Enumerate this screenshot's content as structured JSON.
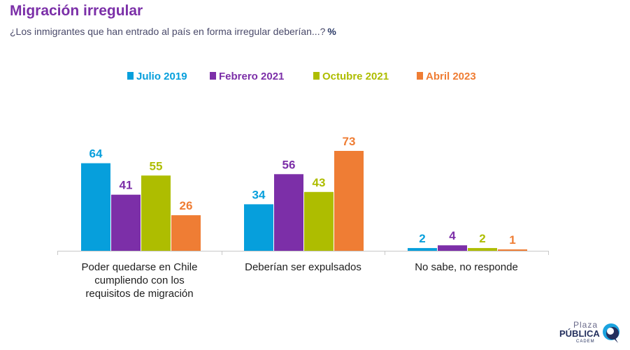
{
  "header": {
    "title": "Migración irregular",
    "subtitle": "¿Los inmigrantes que han entrado al país en forma irregular deberían...?",
    "unit": "%"
  },
  "colors": {
    "Julio 2019": "#069fdc",
    "Febrero 2021": "#7c2fa8",
    "Octubre 2021": "#aebd00",
    "Abril 2023": "#ef7d34"
  },
  "logo": {
    "line1": "Plaza",
    "line2": "PÚBLICA",
    "line3": "CADEM"
  },
  "chart_data": {
    "type": "bar",
    "categories": [
      "Poder quedarse en Chile cumpliendo con los requisitos de migración",
      "Deberían ser expulsados",
      "No sabe, no responde"
    ],
    "category_lines": [
      [
        "Poder quedarse en Chile",
        "cumpliendo con los",
        "requisitos de migración"
      ],
      [
        "Deberían ser expulsados"
      ],
      [
        "No sabe, no responde"
      ]
    ],
    "series": [
      {
        "name": "Julio 2019",
        "values": [
          64,
          34,
          2
        ]
      },
      {
        "name": "Febrero 2021",
        "values": [
          41,
          56,
          4
        ]
      },
      {
        "name": "Octubre 2021",
        "values": [
          55,
          43,
          2
        ]
      },
      {
        "name": "Abril 2023",
        "values": [
          26,
          73,
          1
        ]
      }
    ],
    "legend_position": "top-center",
    "grid": false,
    "ylim": [
      0,
      73
    ]
  }
}
